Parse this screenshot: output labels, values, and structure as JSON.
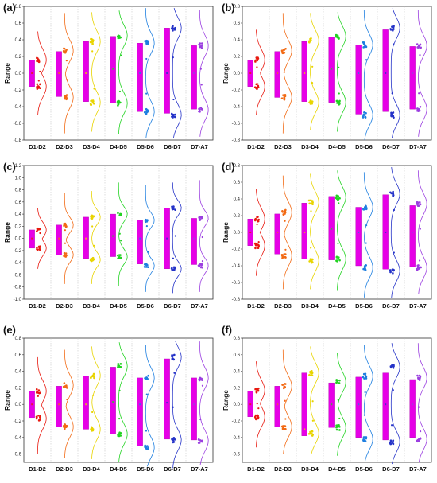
{
  "colors": {
    "box": "#E600E6",
    "series": [
      "#E8190F",
      "#F26A14",
      "#E8D400",
      "#22D322",
      "#1E7FE0",
      "#2533C8",
      "#9B3FE0"
    ]
  },
  "chart_data": [
    {
      "panel": "(a)",
      "type": "box",
      "ylabel": "Range",
      "ylim": [
        -0.8,
        0.8
      ],
      "yticks": [
        -0.8,
        -0.6,
        -0.4,
        -0.2,
        0.0,
        0.2,
        0.4,
        0.6,
        0.8
      ],
      "categories": [
        "D1-D2",
        "D2-D3",
        "D3-D4",
        "D4-D5",
        "D5-D6",
        "D6-D7",
        "D7-A7"
      ],
      "boxes": [
        [
          -0.16,
          0.16
        ],
        [
          -0.28,
          0.26
        ],
        [
          -0.34,
          0.38
        ],
        [
          -0.36,
          0.44
        ],
        [
          -0.46,
          0.36
        ],
        [
          -0.48,
          0.54
        ],
        [
          -0.43,
          0.33
        ]
      ],
      "extent": [
        [
          -0.5,
          0.5
        ],
        [
          -0.72,
          0.72
        ],
        [
          -0.7,
          0.73
        ],
        [
          -0.73,
          0.75
        ],
        [
          -0.78,
          0.78
        ],
        [
          -0.78,
          0.78
        ],
        [
          -0.76,
          0.76
        ]
      ],
      "clusters": [
        [
          -0.16,
          0.16
        ],
        [
          -0.29,
          0.27
        ],
        [
          -0.35,
          0.38
        ],
        [
          -0.36,
          0.45
        ],
        [
          -0.46,
          0.36
        ],
        [
          -0.5,
          0.54
        ],
        [
          -0.44,
          0.33
        ]
      ],
      "mean": [
        0.0,
        0.0,
        0.0,
        0.05,
        0.0,
        0.0,
        0.0
      ]
    },
    {
      "panel": "(b)",
      "type": "box",
      "ylabel": "Range",
      "ylim": [
        -0.8,
        0.8
      ],
      "yticks": [
        -0.8,
        -0.6,
        -0.4,
        -0.2,
        0.0,
        0.2,
        0.4,
        0.6,
        0.8
      ],
      "categories": [
        "D1-D2",
        "D2-D3",
        "D3-D4",
        "D4-D5",
        "D5-D6",
        "D6-D7",
        "D7-A7"
      ],
      "boxes": [
        [
          -0.16,
          0.16
        ],
        [
          -0.29,
          0.26
        ],
        [
          -0.34,
          0.38
        ],
        [
          -0.35,
          0.43
        ],
        [
          -0.49,
          0.34
        ],
        [
          -0.46,
          0.52
        ],
        [
          -0.43,
          0.32
        ]
      ],
      "extent": [
        [
          -0.5,
          0.52
        ],
        [
          -0.72,
          0.72
        ],
        [
          -0.68,
          0.72
        ],
        [
          -0.7,
          0.73
        ],
        [
          -0.8,
          0.76
        ],
        [
          -0.78,
          0.78
        ],
        [
          -0.76,
          0.76
        ]
      ],
      "clusters": [
        [
          -0.16,
          0.16
        ],
        [
          -0.29,
          0.27
        ],
        [
          -0.35,
          0.39
        ],
        [
          -0.35,
          0.44
        ],
        [
          -0.5,
          0.34
        ],
        [
          -0.5,
          0.54
        ],
        [
          -0.43,
          0.33
        ]
      ],
      "mean": [
        0.0,
        0.0,
        0.0,
        0.05,
        0.0,
        0.0,
        0.0
      ]
    },
    {
      "panel": "(c)",
      "type": "box",
      "ylabel": "Range",
      "ylim": [
        -1.0,
        1.2
      ],
      "yticks": [
        -1.0,
        -0.8,
        -0.6,
        -0.4,
        -0.2,
        0.0,
        0.2,
        0.4,
        0.6,
        0.8,
        1.0,
        1.2
      ],
      "categories": [
        "D1-D2",
        "D2-D3",
        "D3-D4",
        "D4-D5",
        "D5-D6",
        "D6-D7",
        "D7-A7"
      ],
      "boxes": [
        [
          -0.16,
          0.14
        ],
        [
          -0.27,
          0.22
        ],
        [
          -0.33,
          0.35
        ],
        [
          -0.3,
          0.4
        ],
        [
          -0.42,
          0.3
        ],
        [
          -0.5,
          0.5
        ],
        [
          -0.43,
          0.33
        ]
      ],
      "extent": [
        [
          -0.5,
          0.5
        ],
        [
          -0.75,
          0.75
        ],
        [
          -0.75,
          0.78
        ],
        [
          -0.78,
          0.92
        ],
        [
          -0.88,
          0.88
        ],
        [
          -0.9,
          0.92
        ],
        [
          -0.88,
          0.96
        ]
      ],
      "clusters": [
        [
          -0.16,
          0.14
        ],
        [
          -0.27,
          0.22
        ],
        [
          -0.35,
          0.35
        ],
        [
          -0.3,
          0.4
        ],
        [
          -0.45,
          0.3
        ],
        [
          -0.5,
          0.5
        ],
        [
          -0.45,
          0.33
        ]
      ],
      "mean": [
        0.0,
        0.0,
        0.0,
        0.04,
        0.0,
        0.0,
        0.0
      ]
    },
    {
      "panel": "(d)",
      "type": "box",
      "ylabel": "Range",
      "ylim": [
        -0.8,
        0.8
      ],
      "yticks": [
        -0.8,
        -0.6,
        -0.4,
        -0.2,
        0.0,
        0.2,
        0.4,
        0.6,
        0.8
      ],
      "categories": [
        "D1-D2",
        "D2-D3",
        "D3-D4",
        "D4-D5",
        "D5-D6",
        "D6-D7",
        "D7-A7"
      ],
      "boxes": [
        [
          -0.16,
          0.16
        ],
        [
          -0.26,
          0.22
        ],
        [
          -0.32,
          0.35
        ],
        [
          -0.33,
          0.43
        ],
        [
          -0.4,
          0.3
        ],
        [
          -0.44,
          0.45
        ],
        [
          -0.41,
          0.32
        ]
      ],
      "extent": [
        [
          -0.52,
          0.52
        ],
        [
          -0.68,
          0.68
        ],
        [
          -0.68,
          0.7
        ],
        [
          -0.7,
          0.74
        ],
        [
          -0.78,
          0.72
        ],
        [
          -0.78,
          0.78
        ],
        [
          -0.74,
          0.74
        ]
      ],
      "clusters": [
        [
          -0.16,
          0.16
        ],
        [
          -0.28,
          0.24
        ],
        [
          -0.34,
          0.36
        ],
        [
          -0.32,
          0.42
        ],
        [
          -0.42,
          0.3
        ],
        [
          -0.46,
          0.46
        ],
        [
          -0.42,
          0.34
        ]
      ],
      "mean": [
        0.0,
        0.0,
        0.0,
        0.04,
        0.0,
        0.0,
        0.0
      ]
    },
    {
      "panel": "(e)",
      "type": "box",
      "ylabel": "Range",
      "ylim": [
        -0.7,
        0.8
      ],
      "yticks": [
        -0.6,
        -0.4,
        -0.2,
        0.0,
        0.2,
        0.4,
        0.6,
        0.8
      ],
      "categories": [
        "D1-D2",
        "D2-D3",
        "D3-D4",
        "D4-D5",
        "D5-D6",
        "D6-D7",
        "D7-A7"
      ],
      "boxes": [
        [
          -0.16,
          0.16
        ],
        [
          -0.27,
          0.22
        ],
        [
          -0.3,
          0.34
        ],
        [
          -0.36,
          0.45
        ],
        [
          -0.5,
          0.32
        ],
        [
          -0.42,
          0.55
        ],
        [
          -0.43,
          0.32
        ]
      ],
      "extent": [
        [
          -0.6,
          0.57
        ],
        [
          -0.65,
          0.66
        ],
        [
          -0.66,
          0.7
        ],
        [
          -0.7,
          0.75
        ],
        [
          -0.75,
          0.72
        ],
        [
          -0.77,
          0.77
        ],
        [
          -0.73,
          0.76
        ]
      ],
      "clusters": [
        [
          -0.17,
          0.16
        ],
        [
          -0.27,
          0.23
        ],
        [
          -0.3,
          0.35
        ],
        [
          -0.36,
          0.46
        ],
        [
          -0.52,
          0.32
        ],
        [
          -0.43,
          0.57
        ],
        [
          -0.44,
          0.32
        ]
      ],
      "mean": [
        0.0,
        0.0,
        0.0,
        0.03,
        0.0,
        0.02,
        0.0
      ]
    },
    {
      "panel": "(f)",
      "type": "box",
      "ylabel": "Range",
      "ylim": [
        -0.7,
        0.8
      ],
      "yticks": [
        -0.6,
        -0.4,
        -0.2,
        0.0,
        0.2,
        0.4,
        0.6,
        0.8
      ],
      "categories": [
        "D1-D2",
        "D2-D3",
        "D3-D4",
        "D4-D5",
        "D5-D6",
        "D6-D7",
        "D7-A7"
      ],
      "boxes": [
        [
          -0.15,
          0.16
        ],
        [
          -0.27,
          0.22
        ],
        [
          -0.38,
          0.38
        ],
        [
          -0.28,
          0.26
        ],
        [
          -0.4,
          0.33
        ],
        [
          -0.43,
          0.38
        ],
        [
          -0.4,
          0.3
        ]
      ],
      "extent": [
        [
          -0.52,
          0.52
        ],
        [
          -0.6,
          0.66
        ],
        [
          -0.6,
          0.7
        ],
        [
          -0.62,
          0.62
        ],
        [
          -0.7,
          0.72
        ],
        [
          -0.72,
          0.74
        ],
        [
          -0.7,
          0.74
        ]
      ],
      "clusters": [
        [
          -0.15,
          0.17
        ],
        [
          -0.27,
          0.22
        ],
        [
          -0.35,
          0.38
        ],
        [
          -0.28,
          0.27
        ],
        [
          -0.42,
          0.34
        ],
        [
          -0.45,
          0.45
        ],
        [
          -0.42,
          0.32
        ]
      ],
      "mean": [
        0.0,
        0.0,
        -0.3,
        0.0,
        0.0,
        0.0,
        0.0
      ]
    }
  ]
}
